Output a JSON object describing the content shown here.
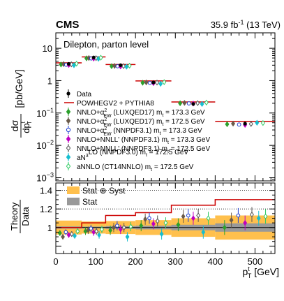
{
  "header": {
    "experiment": "CMS",
    "lumi": "35.9 fb",
    "lumi_sup": "-1",
    "energy": "(13 TeV)"
  },
  "chart_data": [
    {
      "type": "line",
      "panel": "top",
      "annotation": "Dilepton, parton level",
      "ylabel_main": "dσ",
      "ylabel_den": "dp",
      "ylabel_sub": "T",
      "ylabel_sup": "t",
      "ylabel_unit": "[pb/GeV]",
      "yscale": "log",
      "ylim": [
        0.0008,
        30
      ],
      "xlim": [
        0,
        550
      ],
      "yticks": [
        {
          "value": 0.001,
          "base": "10",
          "exp": "−3"
        },
        {
          "value": 0.01,
          "base": "10",
          "exp": "−2"
        },
        {
          "value": 0.1,
          "base": "10",
          "exp": "−1"
        },
        {
          "value": 1,
          "base": "1",
          "exp": ""
        },
        {
          "value": 10,
          "base": "10",
          "exp": ""
        }
      ],
      "bin_edges": [
        0,
        65,
        125,
        200,
        290,
        400,
        550
      ],
      "data": {
        "name": "Data",
        "x": [
          32.5,
          95,
          162.5,
          245,
          345,
          475
        ],
        "y": [
          3.3,
          5.2,
          3.0,
          0.88,
          0.19,
          0.047
        ]
      },
      "powheg": {
        "name": "POWHEGV2 + PYTHIA8",
        "values": [
          3.55,
          5.4,
          3.15,
          0.98,
          0.22,
          0.055
        ],
        "color": "#cc0000"
      },
      "theory": [
        {
          "name_main": "NNLO+α",
          "name_sub": "EW",
          "name_sup": "2",
          "name_rest": " (LUXQED17)",
          "mass": "m",
          "mass_sub": "t",
          "mass_val": " = 173.3 GeV",
          "color": "#2ca02c",
          "marker": "diamond",
          "filled": true,
          "values": [
            3.15,
            4.9,
            2.8,
            0.86,
            0.2,
            0.045
          ]
        },
        {
          "name_main": "NNLO+α",
          "name_sub": "EW",
          "name_sup": "2",
          "name_rest": " (LUXQED17)",
          "mass": "m",
          "mass_sub": "t",
          "mass_val": " = 172.5 GeV",
          "color": "#6b5b4b",
          "marker": "diamond",
          "filled": true,
          "values": [
            3.25,
            5.0,
            2.85,
            0.88,
            0.205,
            0.047
          ]
        },
        {
          "name_main": "NNLO+α",
          "name_sub": "EW",
          "name_sup": "2",
          "name_rest": " (NNPDF3.1)",
          "mass": "m",
          "mass_sub": "t",
          "mass_val": " = 173.3 GeV",
          "color": "#1f3fcf",
          "marker": "circle",
          "filled": false,
          "values": [
            3.1,
            4.85,
            2.78,
            0.85,
            0.198,
            0.044
          ]
        },
        {
          "name_main": "NNLO+NNLL' (NNPDF3.1)",
          "name_sub": "",
          "name_sup": "",
          "name_rest": "",
          "mass": "m",
          "mass_sub": "t",
          "mass_val": " = 173.3 GeV",
          "color": "#c000c0",
          "marker": "diamond",
          "filled": true,
          "values": [
            3.05,
            4.8,
            2.75,
            0.84,
            0.195,
            0.043
          ]
        },
        {
          "name_main": "NNLO+NNLL' (NNPDF3.1)",
          "name_sub": "",
          "name_sup": "",
          "name_rest": "",
          "mass": "m",
          "mass_sub": "t",
          "mass_val": " = 172.5 GeV",
          "color": "#555555",
          "marker": "diamond",
          "filled": false,
          "values": [
            3.2,
            4.95,
            2.82,
            0.87,
            0.202,
            0.046
          ]
        },
        {
          "name_main": "aN",
          "name_sub": "",
          "name_sup": "3",
          "name_rest": "LO (NNPDF3.0)",
          "mass": "m",
          "mass_sub": "t",
          "mass_val": " = 172.5 GeV",
          "color": "#17becf",
          "marker": "diamond",
          "filled": true,
          "values": [
            3.0,
            4.75,
            2.7,
            0.8,
            0.19,
            0.05
          ]
        },
        {
          "name_main": "aNNLO (CT14NNLO)",
          "name_sub": "",
          "name_sup": "",
          "name_rest": "",
          "mass": "m",
          "mass_sub": "t",
          "mass_val": " = 172.5 GeV",
          "color": "#33cc66",
          "marker": "diamond",
          "filled": false,
          "values": [
            3.35,
            5.1,
            2.9,
            0.9,
            0.21,
            0.049
          ]
        }
      ],
      "legend_data": "Data",
      "legend_powheg": "POWHEGV2 + PYTHIA8",
      "legend_placement": "bottom-left"
    },
    {
      "type": "line",
      "panel": "ratio",
      "ylabel_num": "Theory",
      "ylabel_den": "Data",
      "ylim": [
        0.72,
        1.48
      ],
      "yticks": [
        "1",
        "1.2",
        "1.4"
      ],
      "dotted_lines": [
        1.2,
        1.4
      ],
      "xticks": [
        "0",
        "100",
        "200",
        "300",
        "400",
        "500"
      ],
      "xlabel_main": "p",
      "xlabel_sub": "T",
      "xlabel_sup": "t",
      "xlabel_unit": "[GeV]",
      "legend_total": "Stat ⊕ Syst",
      "legend_stat": "Stat",
      "band_total_color": "#ffc04d",
      "band_stat_color": "#999999",
      "total_unc": [
        0.075,
        0.065,
        0.07,
        0.08,
        0.1,
        0.13
      ],
      "stat_unc": [
        0.012,
        0.01,
        0.015,
        0.02,
        0.03,
        0.045
      ],
      "powheg_ratio": [
        1.0,
        1.05,
        1.13,
        1.16,
        1.24,
        1.3
      ],
      "theory_ratio": [
        [
          0.94,
          0.96,
          0.97,
          1.02,
          1.03,
          1.0
        ],
        [
          0.9,
          0.97,
          1.0,
          1.09,
          1.12,
          1.08
        ],
        [
          0.95,
          0.99,
          1.02,
          1.1,
          1.13,
          1.13
        ],
        [
          0.92,
          0.95,
          0.98,
          1.04,
          1.1,
          1.05
        ],
        [
          0.93,
          0.96,
          1.0,
          1.07,
          1.13,
          1.14
        ],
        [
          0.91,
          0.92,
          0.9,
          0.93,
          0.95,
          1.1
        ],
        [
          0.96,
          0.98,
          1.01,
          1.05,
          1.1,
          1.12
        ]
      ]
    }
  ]
}
